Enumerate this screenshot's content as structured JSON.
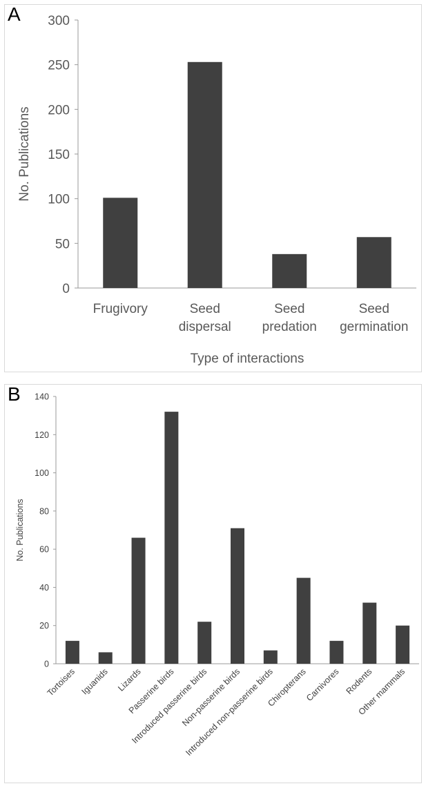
{
  "chart_data": [
    {
      "panel": "A",
      "type": "bar",
      "categories": [
        [
          "Frugivory"
        ],
        [
          "Seed",
          "dispersal"
        ],
        [
          "Seed",
          "predation"
        ],
        [
          "Seed",
          "germination"
        ]
      ],
      "values": [
        101,
        253,
        38,
        57
      ],
      "xlabel": "Type of interactions",
      "ylabel": "No. Publications",
      "ylim": [
        0,
        300
      ],
      "yticks": [
        0,
        50,
        100,
        150,
        200,
        250,
        300
      ],
      "grid": false,
      "bar_color": "#404040"
    },
    {
      "panel": "B",
      "type": "bar",
      "categories": [
        "Tortoises",
        "Iguanids",
        "Lizards",
        "Passerine birds",
        "Introduced passerine birds",
        "Non-passerine birds",
        "Introduced non-passerine birds",
        "Chiropterans",
        "Carnivores",
        "Rodents",
        "Other mammals"
      ],
      "values": [
        12,
        6,
        66,
        132,
        22,
        71,
        7,
        45,
        12,
        32,
        20
      ],
      "xlabel": "",
      "ylabel": "No. Publications",
      "ylim": [
        0,
        140
      ],
      "yticks": [
        0,
        20,
        40,
        60,
        80,
        100,
        120,
        140
      ],
      "grid": false,
      "bar_color": "#404040"
    }
  ]
}
